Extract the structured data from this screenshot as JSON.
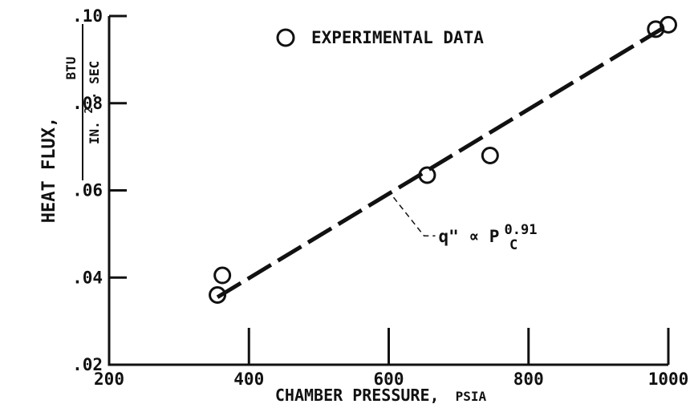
{
  "chart_data": {
    "type": "scatter",
    "xlabel": "CHAMBER PRESSURE,",
    "xlabel_unit": "PSIA",
    "ylabel": "HEAT FLUX,",
    "ylabel_unit_numerator": "BTU",
    "ylabel_unit_denominator": "IN.",
    "ylabel_unit_denominator_exp": "2",
    "ylabel_unit_denominator_tail": "· SEC",
    "xlim": [
      200,
      1000
    ],
    "ylim": [
      0.02,
      0.1
    ],
    "x_ticks": [
      200,
      400,
      600,
      800,
      1000
    ],
    "x_tick_labels": [
      "200",
      "400",
      "600",
      "800",
      "1000"
    ],
    "y_ticks": [
      0.02,
      0.04,
      0.06,
      0.08,
      0.1
    ],
    "y_tick_labels": [
      ".02",
      ".04",
      ".06",
      ".08",
      ".10"
    ],
    "legend": {
      "label": "EXPERIMENTAL DATA",
      "position": "top-center"
    },
    "series": [
      {
        "name": "EXPERIMENTAL DATA",
        "marker": "open-circle",
        "points": [
          {
            "x": 355,
            "y": 0.036
          },
          {
            "x": 362,
            "y": 0.0405
          },
          {
            "x": 655,
            "y": 0.0635
          },
          {
            "x": 745,
            "y": 0.068
          },
          {
            "x": 982,
            "y": 0.097
          },
          {
            "x": 1000,
            "y": 0.098
          }
        ]
      }
    ],
    "fit_line": {
      "style": "dashed",
      "points": [
        {
          "x": 355,
          "y": 0.0355
        },
        {
          "x": 990,
          "y": 0.097
        }
      ]
    },
    "annotation": {
      "text_prefix": "q\" ∝ P",
      "subscript": "C",
      "superscript": "0.91",
      "anchor_x": 600,
      "anchor_y": 0.0595
    }
  }
}
